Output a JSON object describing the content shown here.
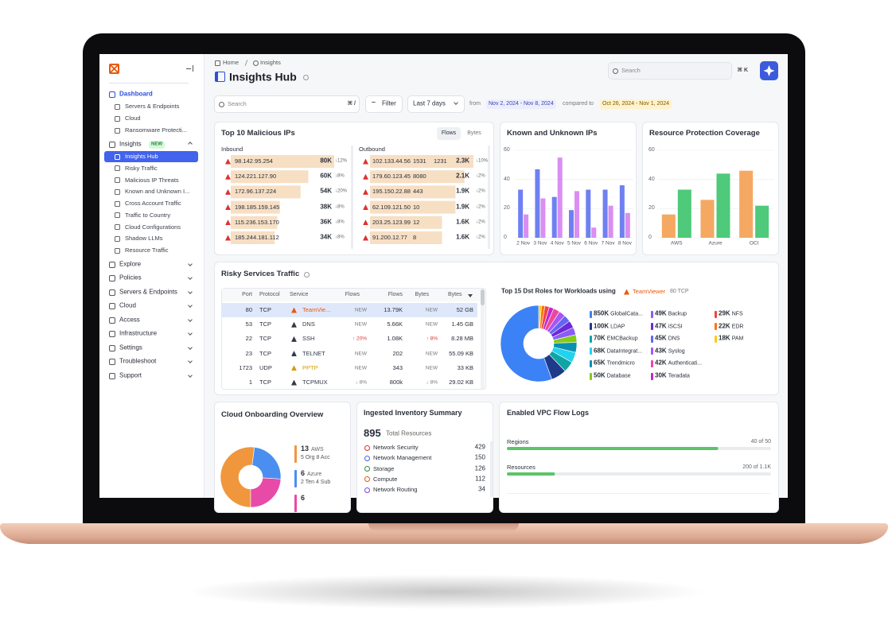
{
  "sidebar": {
    "groups": [
      {
        "label": "Dashboard",
        "children": [
          "Servers & Endpoints",
          "Cloud",
          "Ransomware Protecti..."
        ]
      },
      {
        "label": "Insights",
        "badge": "NEW",
        "children": [
          "Insights Hub",
          "Risky Traffic",
          "Malicious IP Threats",
          "Known and Unknown I...",
          "Cross Account Traffic",
          "Traffic to Country",
          "Cloud Configurations",
          "Shadow LLMs",
          "Resource Traffic"
        ]
      },
      {
        "label": "Explore"
      },
      {
        "label": "Policies"
      },
      {
        "label": "Servers & Endpoints"
      },
      {
        "label": "Cloud"
      },
      {
        "label": "Access"
      },
      {
        "label": "Infrastructure"
      },
      {
        "label": "Settings"
      },
      {
        "label": "Troubleshoot"
      },
      {
        "label": "Support"
      }
    ]
  },
  "header": {
    "breadcrumb": [
      "Home",
      "Insights"
    ],
    "title": "Insights Hub",
    "search": "Search",
    "shortcut": "⌘ K"
  },
  "toolbar": {
    "search": "Search",
    "shortcut": "⌘ /",
    "filter": "Filter",
    "range": "Last 7 days",
    "from": "from",
    "from_range": "Nov 2, 2024 - Nov 8, 2024",
    "compared": "compared to",
    "compare_range": "Oct 26, 2024 - Nov 1, 2024"
  },
  "malicious_ips": {
    "title": "Top 10 Malicious IPs",
    "tabs": [
      "Flows",
      "Bytes"
    ],
    "inbound": {
      "heading": "Inbound",
      "rows": [
        {
          "ip": "98.142.95.254",
          "value": 80000,
          "value_label": "80K",
          "change": "↓12%"
        },
        {
          "ip": "124.221.127.90",
          "value": 60000,
          "value_label": "60K",
          "change": "↓8%"
        },
        {
          "ip": "172.96.137.224",
          "value": 54000,
          "value_label": "54K",
          "change": "↓20%"
        },
        {
          "ip": "198.185.159.145",
          "value": 38000,
          "value_label": "38K",
          "change": "↓8%"
        },
        {
          "ip": "115.236.153.170",
          "value": 36000,
          "value_label": "36K",
          "change": "↓8%"
        },
        {
          "ip": "185.244.181.112",
          "value": 34000,
          "value_label": "34K",
          "change": "↓8%"
        }
      ]
    },
    "outbound": {
      "heading": "Outbound",
      "rows": [
        {
          "ip": "102.133.44.56",
          "ports": [
            "1531",
            "1231"
          ],
          "value": 2300,
          "value_label": "2.3K",
          "change": "↓10%"
        },
        {
          "ip": "179.60.123.45",
          "ports": [
            "8080"
          ],
          "value": 2100,
          "value_label": "2.1K",
          "change": "↓2%"
        },
        {
          "ip": "195.150.22.88",
          "ports": [
            "443"
          ],
          "value": 1900,
          "value_label": "1.9K",
          "change": "↓2%"
        },
        {
          "ip": "62.109.121.50",
          "ports": [
            "10"
          ],
          "value": 1900,
          "value_label": "1.9K",
          "change": "↓2%"
        },
        {
          "ip": "203.25.123.99",
          "ports": [
            "12"
          ],
          "value": 1600,
          "value_label": "1.6K",
          "change": "↓2%"
        },
        {
          "ip": "91.200.12.77",
          "ports": [
            "8"
          ],
          "value": 1600,
          "value_label": "1.6K",
          "change": "↓2%"
        }
      ]
    }
  },
  "known_unknown_ips": {
    "title": "Known and Unknown IPs",
    "categories": [
      "2 Nov",
      "3 Nov",
      "4 Nov",
      "5 Nov",
      "6 Nov",
      "7 Nov",
      "8 Nov"
    ],
    "series": [
      {
        "color": "#6f80f2",
        "values": [
          33,
          47,
          28,
          19,
          33,
          33,
          36
        ]
      },
      {
        "color": "#d98ef2",
        "values": [
          16,
          27,
          55,
          32,
          7,
          22,
          17
        ]
      }
    ],
    "ylim": [
      0,
      60
    ],
    "yticks": [
      0,
      20,
      40,
      60
    ]
  },
  "resource_protection": {
    "title": "Resource Protection Coverage",
    "categories": [
      "AWS",
      "Azure",
      "OCI"
    ],
    "series": [
      {
        "color": "#f5a862",
        "values": [
          16,
          26,
          46
        ]
      },
      {
        "color": "#4fc97a",
        "values": [
          33,
          44,
          22
        ]
      }
    ],
    "ylim": [
      0,
      60
    ],
    "yticks": [
      0,
      20,
      40,
      60
    ]
  },
  "risky_services": {
    "title": "Risky Services Traffic",
    "columns": [
      "Port",
      "Protocol",
      "Service",
      "Flows",
      "Flows",
      "Bytes",
      "Bytes"
    ],
    "rows": [
      {
        "port": 80,
        "protocol": "TCP",
        "service": "TeamVie...",
        "color": "#e8590c",
        "flows_change": "NEW",
        "flows": "13.79K",
        "bytes_change": "NEW",
        "bytes": "52 GB"
      },
      {
        "port": 53,
        "protocol": "TCP",
        "service": "DNS",
        "color": "#333a48",
        "flows_change": "NEW",
        "flows": "5.66K",
        "bytes_change": "NEW",
        "bytes": "1.45 GB"
      },
      {
        "port": 22,
        "protocol": "TCP",
        "service": "SSH",
        "color": "#333a48",
        "flows_change": "↑ 20%",
        "flows": "1.08K",
        "bytes_change": "↑ 8%",
        "bytes": "8.28 MB"
      },
      {
        "port": 23,
        "protocol": "TCP",
        "service": "TELNET",
        "color": "#333a48",
        "flows_change": "NEW",
        "flows": "202",
        "bytes_change": "NEW",
        "bytes": "55.09 KB"
      },
      {
        "port": 1723,
        "protocol": "UDP",
        "service": "PPTP",
        "color": "#d99a00",
        "flows_change": "NEW",
        "flows": "343",
        "bytes_change": "NEW",
        "bytes": "33 KB"
      },
      {
        "port": 1,
        "protocol": "TCP",
        "service": "TCPMUX",
        "color": "#333a48",
        "flows_change": "↓ 8%",
        "flows": "800k",
        "bytes_change": "↓ 8%",
        "bytes": "29.02 KB"
      }
    ]
  },
  "dst_roles": {
    "title": "Top 15 Dst Roles for Workloads using",
    "service": "TeamViewer",
    "port": "80 TCP",
    "items": [
      {
        "name": "GlobalCata...",
        "value": 850000,
        "value_label": "850K",
        "color": "#3b82f6"
      },
      {
        "name": "LDAP",
        "value": 100000,
        "value_label": "100K",
        "color": "#1e3a8a"
      },
      {
        "name": "EMCBackup",
        "value": 70000,
        "value_label": "70K",
        "color": "#0ea5a4"
      },
      {
        "name": "DataIntegrat...",
        "value": 68000,
        "value_label": "68K",
        "color": "#22d3ee"
      },
      {
        "name": "Trendmicro",
        "value": 65000,
        "value_label": "65K",
        "color": "#0891b2"
      },
      {
        "name": "Database",
        "value": 50000,
        "value_label": "50K",
        "color": "#84cc16"
      },
      {
        "name": "Backup",
        "value": 49000,
        "value_label": "49K",
        "color": "#8b5cf6"
      },
      {
        "name": "iSCSI",
        "value": 47000,
        "value_label": "47K",
        "color": "#6d28d9"
      },
      {
        "name": "DNS",
        "value": 45000,
        "value_label": "45K",
        "color": "#6366f1"
      },
      {
        "name": "Syslog",
        "value": 43000,
        "value_label": "43K",
        "color": "#a855f7"
      },
      {
        "name": "Authenticati...",
        "value": 42000,
        "value_label": "42K",
        "color": "#ec4899"
      },
      {
        "name": "Teradata",
        "value": 30000,
        "value_label": "30K",
        "color": "#c026d3"
      },
      {
        "name": "NFS",
        "value": 29000,
        "value_label": "29K",
        "color": "#ef4444"
      },
      {
        "name": "EDR",
        "value": 22000,
        "value_label": "22K",
        "color": "#f97316"
      },
      {
        "name": "PAM",
        "value": 18000,
        "value_label": "18K",
        "color": "#facc15"
      }
    ]
  },
  "cloud_onboarding": {
    "title": "Cloud Onboarding Overview",
    "items": [
      {
        "value": 13,
        "name": "AWS",
        "detail": "5 Org 8 Acc",
        "color": "#f0963c"
      },
      {
        "value": 6,
        "name": "Azure",
        "detail": "2 Ten 4 Sub",
        "color": "#4a8ff0"
      },
      {
        "value": 6,
        "color": "#e84aa8"
      }
    ]
  },
  "inventory": {
    "title": "Ingested Inventory Summary",
    "total": 895,
    "total_label": "Total Resources",
    "rows": [
      {
        "name": "Network Security",
        "value": 429
      },
      {
        "name": "Network Management",
        "value": 150
      },
      {
        "name": "Storage",
        "value": 126
      },
      {
        "name": "Compute",
        "value": 112
      },
      {
        "name": "Network Routing",
        "value": 34
      }
    ]
  },
  "vpc_flow_logs": {
    "title": "Enabled VPC Flow Logs",
    "rows": [
      {
        "label": "Regions",
        "value": 40,
        "total": 50,
        "text": "40 of 50"
      },
      {
        "label": "Resources",
        "value": 200,
        "total": 1100,
        "text": "200 of 1.1K"
      }
    ]
  }
}
